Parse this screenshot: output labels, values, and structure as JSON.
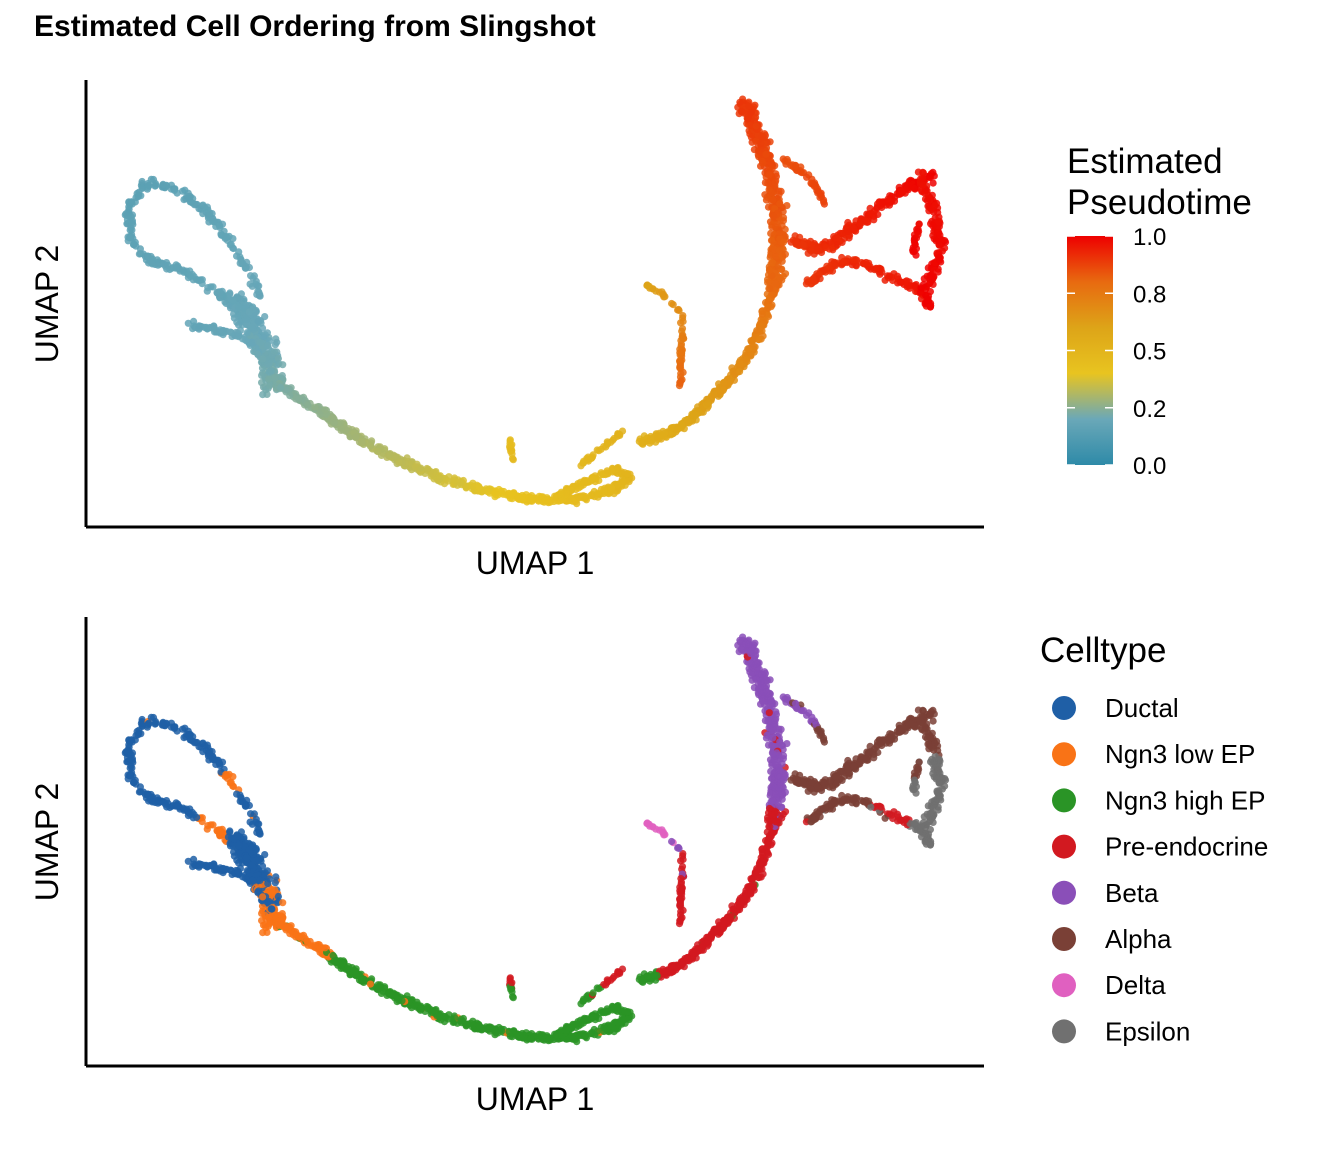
{
  "title": "Estimated Cell Ordering from Slingshot",
  "chart_data": [
    {
      "type": "scatter",
      "panel": "pseudotime",
      "xlabel": "UMAP 1",
      "ylabel": "UMAP 2",
      "axis_ticks": "none",
      "grid": false,
      "legend": {
        "type": "colorbar",
        "title_lines": [
          "Estimated",
          "Pseudotime"
        ],
        "placement": "right",
        "ticks": [
          "0.0",
          "0.2",
          "0.5",
          "0.8",
          "1.0"
        ],
        "range": [
          0,
          1
        ],
        "gradient_colors": [
          "#2E8AA8",
          "#6AA8B8",
          "#E8C420",
          "#DDA418",
          "#E86A10",
          "#EE0000"
        ]
      }
    },
    {
      "type": "scatter",
      "panel": "celltype",
      "xlabel": "UMAP 1",
      "ylabel": "UMAP 2",
      "axis_ticks": "none",
      "grid": false,
      "legend": {
        "type": "categorical",
        "title": "Celltype",
        "placement": "right",
        "entries": [
          {
            "label": "Ductal",
            "color": "#1F5FA6"
          },
          {
            "label": "Ngn3 low EP",
            "color": "#F97316"
          },
          {
            "label": "Ngn3 high EP",
            "color": "#2A9426"
          },
          {
            "label": "Pre-endocrine",
            "color": "#D21920"
          },
          {
            "label": "Beta",
            "color": "#8A4FB8"
          },
          {
            "label": "Alpha",
            "color": "#7A4036"
          },
          {
            "label": "Delta",
            "color": "#E060C0"
          },
          {
            "label": "Epsilon",
            "color": "#707070"
          }
        ]
      }
    }
  ]
}
